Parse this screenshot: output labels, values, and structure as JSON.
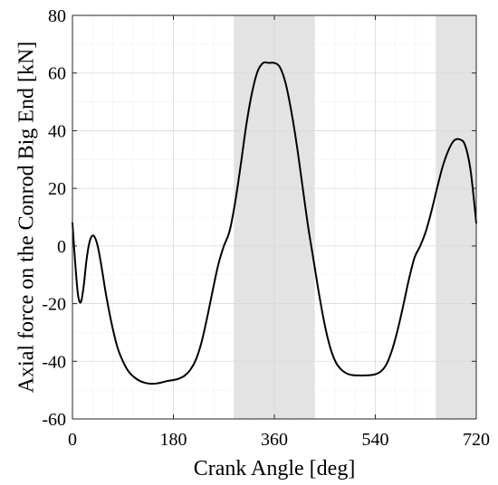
{
  "chart_data": {
    "type": "line",
    "xlabel": "Crank Angle [deg]",
    "ylabel": "Axial force on the Conrod Big End [kN]",
    "xlim": [
      0,
      720
    ],
    "ylim": [
      -60,
      80
    ],
    "xticks": [
      0,
      180,
      360,
      540,
      720
    ],
    "yticks": [
      -60,
      -40,
      -20,
      0,
      20,
      40,
      60,
      80
    ],
    "grid": true,
    "minor_grid": true,
    "shaded_regions": [
      {
        "x_start": 288,
        "x_end": 432
      },
      {
        "x_start": 648,
        "x_end": 720
      }
    ],
    "colors": {
      "line": "#000000",
      "shading": "#e3e3e3",
      "grid": "#d9d9d9",
      "axes": "#262626"
    },
    "series": [
      {
        "x": [
          0,
          5,
          10,
          15,
          20,
          25,
          30,
          35,
          40,
          45,
          50,
          55,
          60,
          70,
          80,
          90,
          100,
          110,
          120,
          130,
          140,
          150,
          160,
          170,
          180,
          190,
          200,
          210,
          220,
          230,
          240,
          250,
          260,
          270,
          280,
          290,
          300,
          310,
          320,
          330,
          340,
          350,
          360,
          370,
          380,
          390,
          400,
          410,
          420,
          430,
          440,
          450,
          460,
          470,
          480,
          490,
          500,
          510,
          520,
          530,
          540,
          550,
          560,
          570,
          580,
          590,
          600,
          610,
          620,
          630,
          640,
          650,
          660,
          670,
          680,
          690,
          700,
          710,
          720
        ],
        "y": [
          8,
          -6,
          -17,
          -19.5,
          -14,
          -5,
          1,
          3.5,
          3,
          0,
          -5,
          -11,
          -17,
          -27,
          -35,
          -40,
          -43.5,
          -45.5,
          -46.8,
          -47.5,
          -47.8,
          -47.7,
          -47.3,
          -46.8,
          -46.5,
          -46,
          -45,
          -43,
          -39.5,
          -33.5,
          -25,
          -15.5,
          -6.5,
          0,
          5,
          15,
          28,
          42,
          53,
          60.5,
          63.5,
          63.5,
          63.5,
          62,
          56.5,
          47,
          35,
          21,
          7,
          -5,
          -17,
          -27.5,
          -35.5,
          -40.5,
          -43,
          -44.3,
          -44.8,
          -44.9,
          -44.9,
          -44.8,
          -44.5,
          -43.5,
          -41,
          -36,
          -29,
          -20.5,
          -11.5,
          -4,
          0,
          5,
          12,
          20,
          27.5,
          33,
          36.5,
          37,
          35,
          26,
          8
        ]
      }
    ]
  }
}
